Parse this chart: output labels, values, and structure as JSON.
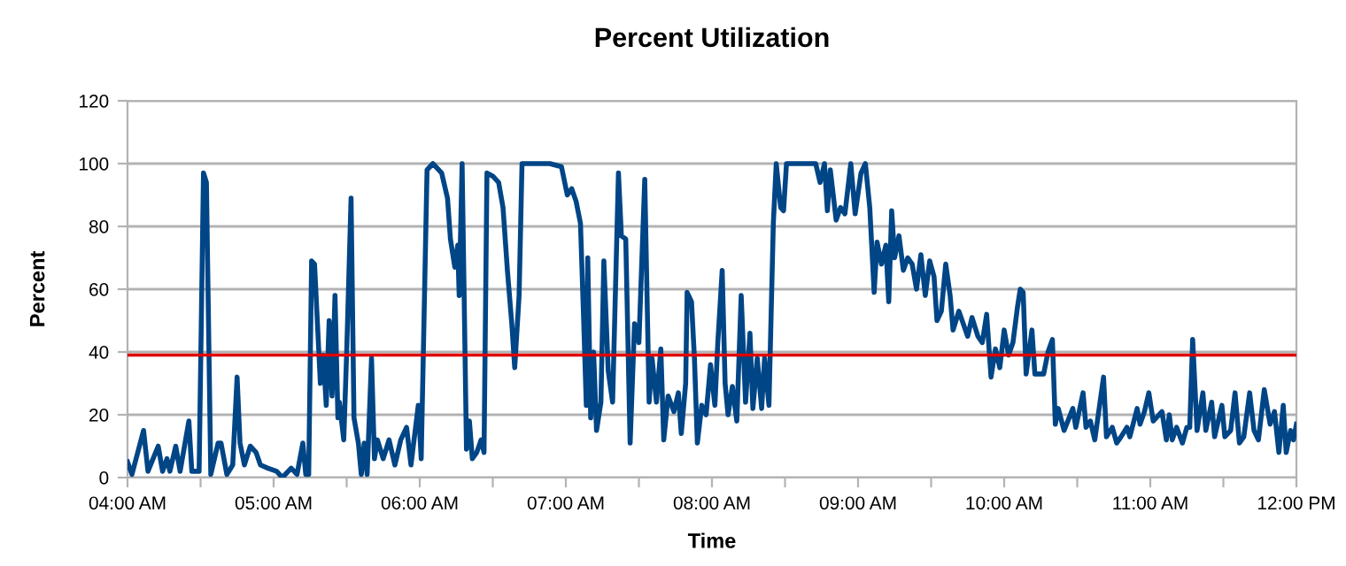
{
  "chart_data": {
    "type": "line",
    "title": "Percent Utilization",
    "xlabel": "Time",
    "ylabel": "Percent",
    "xlim": [
      4,
      12
    ],
    "ylim": [
      0,
      120
    ],
    "xticks": [
      {
        "value": 4,
        "label": "04:00 AM"
      },
      {
        "value": 4.5,
        "label": null
      },
      {
        "value": 5,
        "label": "05:00 AM"
      },
      {
        "value": 5.5,
        "label": null
      },
      {
        "value": 6,
        "label": "06:00 AM"
      },
      {
        "value": 6.5,
        "label": null
      },
      {
        "value": 7,
        "label": "07:00 AM"
      },
      {
        "value": 7.5,
        "label": null
      },
      {
        "value": 8,
        "label": "08:00 AM"
      },
      {
        "value": 8.5,
        "label": null
      },
      {
        "value": 9,
        "label": "09:00 AM"
      },
      {
        "value": 9.5,
        "label": null
      },
      {
        "value": 10,
        "label": "10:00 AM"
      },
      {
        "value": 10.5,
        "label": null
      },
      {
        "value": 11,
        "label": "11:00 AM"
      },
      {
        "value": 11.5,
        "label": null
      },
      {
        "value": 12,
        "label": "12:00 PM"
      }
    ],
    "yticks": [
      0,
      20,
      40,
      60,
      80,
      100,
      120
    ],
    "grid": "y",
    "marker": "none",
    "line_style": "solid",
    "ref_lines": [
      {
        "axis": "y",
        "value": 39,
        "label": null,
        "color": "#e00000"
      }
    ],
    "series": [
      {
        "color": "#004586",
        "x": [
          4.0,
          4.03,
          4.11,
          4.14,
          4.21,
          4.24,
          4.27,
          4.29,
          4.33,
          4.36,
          4.42,
          4.44,
          4.49,
          4.52,
          4.54,
          4.57,
          4.62,
          4.64,
          4.68,
          4.72,
          4.75,
          4.77,
          4.8,
          4.84,
          4.88,
          4.91,
          4.96,
          5.02,
          5.06,
          5.12,
          5.16,
          5.2,
          5.22,
          5.24,
          5.26,
          5.28,
          5.32,
          5.34,
          5.36,
          5.38,
          5.4,
          5.42,
          5.44,
          5.45,
          5.48,
          5.5,
          5.53,
          5.55,
          5.58,
          5.6,
          5.62,
          5.64,
          5.67,
          5.69,
          5.71,
          5.75,
          5.79,
          5.83,
          5.87,
          5.91,
          5.94,
          5.99,
          6.01,
          6.05,
          6.09,
          6.15,
          6.19,
          6.21,
          6.24,
          6.26,
          6.27,
          6.29,
          6.32,
          6.34,
          6.36,
          6.39,
          6.42,
          6.44,
          6.46,
          6.5,
          6.54,
          6.57,
          6.6,
          6.63,
          6.65,
          6.68,
          6.7,
          6.76,
          6.89,
          6.97,
          7.01,
          7.04,
          7.07,
          7.1,
          7.12,
          7.14,
          7.15,
          7.17,
          7.19,
          7.21,
          7.24,
          7.26,
          7.29,
          7.32,
          7.36,
          7.38,
          7.41,
          7.44,
          7.47,
          7.5,
          7.54,
          7.57,
          7.59,
          7.62,
          7.65,
          7.67,
          7.7,
          7.74,
          7.77,
          7.79,
          7.82,
          7.83,
          7.86,
          7.88,
          7.9,
          7.93,
          7.96,
          7.99,
          8.02,
          8.04,
          8.07,
          8.09,
          8.11,
          8.14,
          8.17,
          8.2,
          8.23,
          8.26,
          8.28,
          8.31,
          8.34,
          8.36,
          8.39,
          8.42,
          8.44,
          8.47,
          8.49,
          8.51,
          8.71,
          8.74,
          8.77,
          8.79,
          8.81,
          8.85,
          8.88,
          8.91,
          8.95,
          8.98,
          9.02,
          9.05,
          9.08,
          9.11,
          9.13,
          9.16,
          9.19,
          9.21,
          9.23,
          9.25,
          9.28,
          9.31,
          9.34,
          9.37,
          9.4,
          9.43,
          9.46,
          9.49,
          9.52,
          9.54,
          9.57,
          9.6,
          9.63,
          9.65,
          9.69,
          9.72,
          9.75,
          9.78,
          9.82,
          9.85,
          9.88,
          9.91,
          9.94,
          9.97,
          10.0,
          10.03,
          10.06,
          10.09,
          10.11,
          10.13,
          10.15,
          10.19,
          10.21,
          10.27,
          10.3,
          10.33,
          10.35,
          10.37,
          10.41,
          10.47,
          10.49,
          10.54,
          10.56,
          10.59,
          10.62,
          10.68,
          10.7,
          10.74,
          10.77,
          10.8,
          10.84,
          10.86,
          10.91,
          10.93,
          10.96,
          10.99,
          11.02,
          11.08,
          11.11,
          11.13,
          11.15,
          11.18,
          11.22,
          11.25,
          11.27,
          11.29,
          11.32,
          11.36,
          11.38,
          11.42,
          11.44,
          11.49,
          11.51,
          11.55,
          11.58,
          11.61,
          11.64,
          11.68,
          11.71,
          11.74,
          11.78,
          11.82,
          11.85,
          11.88,
          11.91,
          11.93,
          11.96,
          11.98,
          12.0
        ],
        "values": [
          5,
          1,
          15,
          2,
          10,
          2,
          6,
          2,
          10,
          2,
          18,
          2,
          2,
          97,
          94,
          1,
          11,
          11,
          1,
          4,
          32,
          11,
          4,
          10,
          8,
          4,
          3,
          2,
          0,
          3,
          1,
          11,
          1,
          1,
          69,
          68,
          30,
          39,
          23,
          50,
          26,
          58,
          19,
          24,
          12,
          40,
          89,
          19,
          11,
          1,
          11,
          1,
          38,
          6,
          12,
          6,
          12,
          4,
          12,
          16,
          4,
          23,
          6,
          98,
          100,
          97,
          89,
          76,
          67,
          74,
          58,
          100,
          9,
          18,
          6,
          8,
          12,
          8,
          97,
          96,
          94,
          86,
          66,
          49,
          35,
          58,
          100,
          100,
          100,
          99,
          90,
          92,
          88,
          81,
          53,
          23,
          70,
          19,
          40,
          15,
          24,
          69,
          34,
          24,
          97,
          77,
          76,
          11,
          49,
          43,
          95,
          24,
          38,
          24,
          41,
          12,
          26,
          21,
          27,
          14,
          30,
          59,
          56,
          38,
          11,
          23,
          20,
          36,
          23,
          43,
          66,
          30,
          20,
          29,
          18,
          58,
          24,
          46,
          22,
          38,
          22,
          38,
          23,
          81,
          100,
          86,
          85,
          100,
          100,
          94,
          100,
          85,
          98,
          82,
          86,
          84,
          100,
          84,
          97,
          100,
          86,
          59,
          75,
          68,
          74,
          56,
          85,
          70,
          77,
          66,
          70,
          68,
          60,
          71,
          58,
          69,
          64,
          50,
          53,
          68,
          58,
          47,
          53,
          49,
          45,
          51,
          45,
          43,
          52,
          32,
          41,
          35,
          47,
          39,
          43,
          54,
          60,
          59,
          33,
          47,
          33,
          33,
          40,
          44,
          17,
          22,
          15,
          22,
          16,
          27,
          16,
          18,
          12,
          32,
          13,
          16,
          11,
          13,
          16,
          13,
          22,
          17,
          21,
          27,
          18,
          21,
          12,
          20,
          12,
          16,
          11,
          16,
          16,
          44,
          15,
          27,
          15,
          24,
          13,
          23,
          13,
          15,
          27,
          11,
          13,
          27,
          15,
          12,
          28,
          17,
          21,
          8,
          23,
          8,
          15,
          12,
          17
        ]
      }
    ]
  }
}
